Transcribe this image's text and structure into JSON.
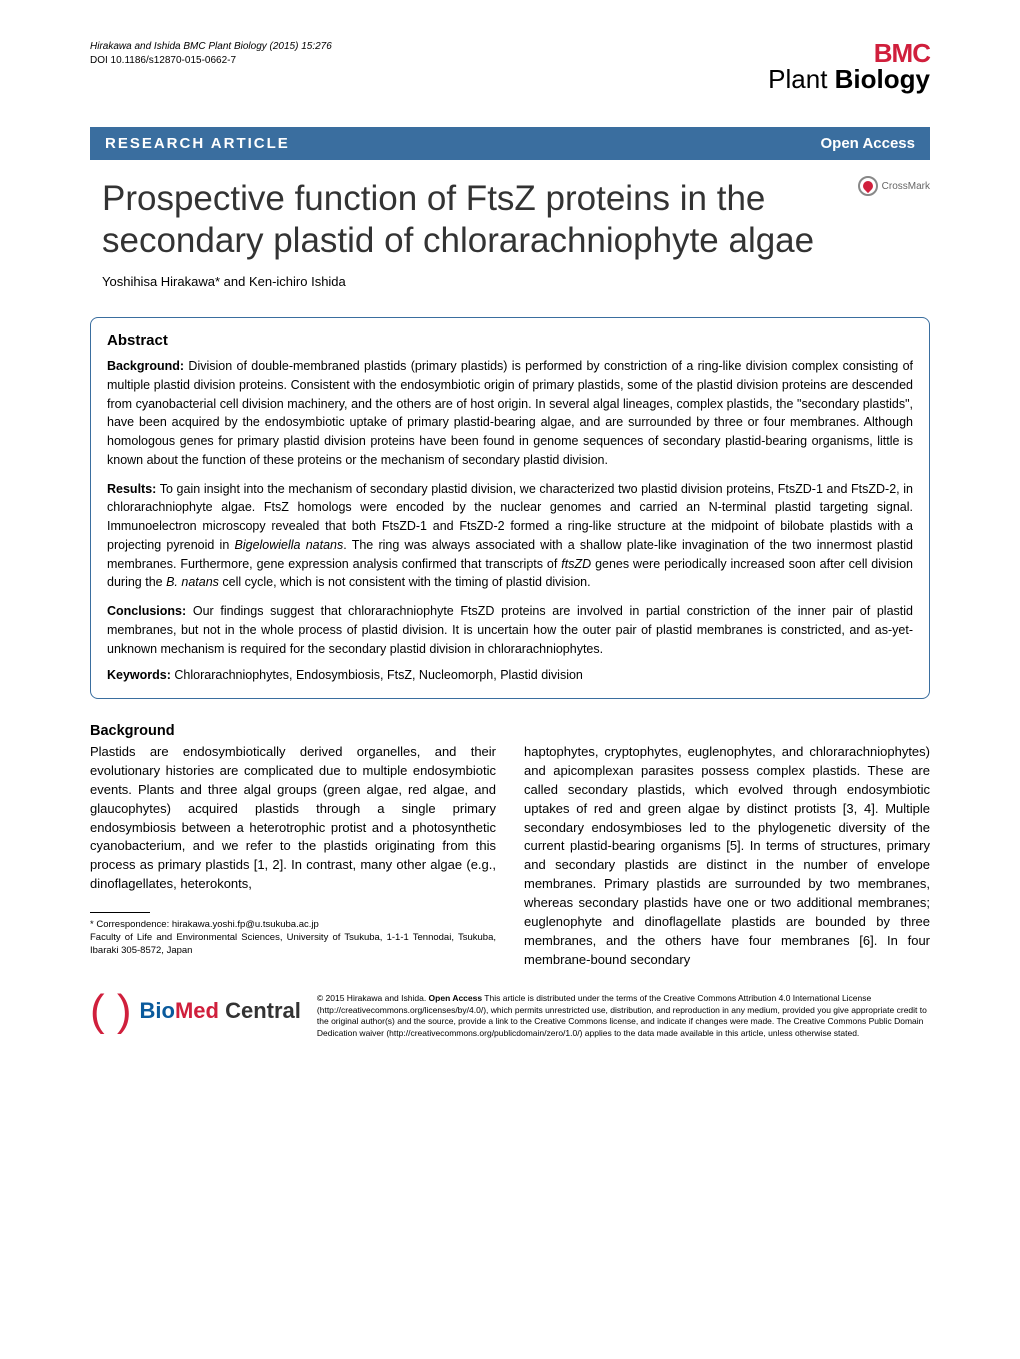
{
  "header": {
    "citation_line1": "Hirakawa and Ishida BMC Plant Biology (2015) 15:276",
    "doi": "DOI 10.1186/s12870-015-0662-7",
    "journal_prefix": "BMC",
    "journal_name1": "Plant",
    "journal_name2": "Biology"
  },
  "bar": {
    "article_type": "RESEARCH ARTICLE",
    "open_access": "Open Access"
  },
  "title": "Prospective function of FtsZ proteins in the secondary plastid of chlorarachniophyte algae",
  "crossmark_label": "CrossMark",
  "authors": "Yoshihisa Hirakawa* and Ken-ichiro Ishida",
  "abstract": {
    "heading": "Abstract",
    "background_label": "Background:",
    "background_text": " Division of double-membraned plastids (primary plastids) is performed by constriction of a ring-like division complex consisting of multiple plastid division proteins. Consistent with the endosymbiotic origin of primary plastids, some of the plastid division proteins are descended from cyanobacterial cell division machinery, and the others are of host origin. In several algal lineages, complex plastids, the \"secondary plastids\", have been acquired by the endosymbiotic uptake of primary plastid-bearing algae, and are surrounded by three or four membranes. Although homologous genes for primary plastid division proteins have been found in genome sequences of secondary plastid-bearing organisms, little is known about the function of these proteins or the mechanism of secondary plastid division.",
    "results_label": "Results:",
    "results_text_1": " To gain insight into the mechanism of secondary plastid division, we characterized two plastid division proteins, FtsZD-1 and FtsZD-2, in chlorarachniophyte algae. FtsZ homologs were encoded by the nuclear genomes and carried an N-terminal plastid targeting signal. Immunoelectron microscopy revealed that both FtsZD-1 and FtsZD-2 formed a ring-like structure at the midpoint of bilobate plastids with a projecting pyrenoid in ",
    "results_italic_1": "Bigelowiella natans",
    "results_text_2": ". The ring was always associated with a shallow plate-like invagination of the two innermost plastid membranes. Furthermore, gene expression analysis confirmed that transcripts of ",
    "results_italic_2": "ftsZD",
    "results_text_3": " genes were periodically increased soon after cell division during the ",
    "results_italic_3": "B. natans",
    "results_text_4": " cell cycle, which is not consistent with the timing of plastid division.",
    "conclusions_label": "Conclusions:",
    "conclusions_text": " Our findings suggest that chlorarachniophyte FtsZD proteins are involved in partial constriction of the inner pair of plastid membranes, but not in the whole process of plastid division. It is uncertain how the outer pair of plastid membranes is constricted, and as-yet-unknown mechanism is required for the secondary plastid division in chlorarachniophytes.",
    "keywords_label": "Keywords:",
    "keywords_text": " Chlorarachniophytes, Endosymbiosis, FtsZ, Nucleomorph, Plastid division"
  },
  "body": {
    "heading": "Background",
    "col1": "Plastids are endosymbiotically derived organelles, and their evolutionary histories are complicated due to multiple endosymbiotic events. Plants and three algal groups (green algae, red algae, and glaucophytes) acquired plastids through a single primary endosymbiosis between a heterotrophic protist and a photosynthetic cyanobacterium, and we refer to the plastids originating from this process as primary plastids [1, 2]. In contrast, many other algae (e.g., dinoflagellates, heterokonts,",
    "col2": "haptophytes, cryptophytes, euglenophytes, and chlorarachniophytes) and apicomplexan parasites possess complex plastids. These are called secondary plastids, which evolved through endosymbiotic uptakes of red and green algae by distinct protists [3, 4]. Multiple secondary endosymbioses led to the phylogenetic diversity of the current plastid-bearing organisms [5]. In terms of structures, primary and secondary plastids are distinct in the number of envelope membranes. Primary plastids are surrounded by two membranes, whereas secondary plastids have one or two additional membranes; euglenophyte and dinoflagellate plastids are bounded by three membranes, and the others have four membranes [6]. In four membrane-bound secondary"
  },
  "correspondence": {
    "line1": "* Correspondence: hirakawa.yoshi.fp@u.tsukuba.ac.jp",
    "line2": "Faculty of Life and Environmental Sciences, University of Tsukuba, 1-1-1 Tennodai, Tsukuba, Ibaraki 305-8572, Japan"
  },
  "footer": {
    "logo_bio": "Bio",
    "logo_med": "Med",
    "logo_central": " Central",
    "license_prefix": "© 2015 Hirakawa and Ishida. ",
    "license_bold": "Open Access",
    "license_text": " This article is distributed under the terms of the Creative Commons Attribution 4.0 International License (http://creativecommons.org/licenses/by/4.0/), which permits unrestricted use, distribution, and reproduction in any medium, provided you give appropriate credit to the original author(s) and the source, provide a link to the Creative Commons license, and indicate if changes were made. The Creative Commons Public Domain Dedication waiver (http://creativecommons.org/publicdomain/zero/1.0/) applies to the data made available in this article, unless otherwise stated."
  },
  "colors": {
    "bar_bg": "#3a6e9f",
    "brand_red": "#d01f3c",
    "brand_blue": "#0a5a9c"
  }
}
